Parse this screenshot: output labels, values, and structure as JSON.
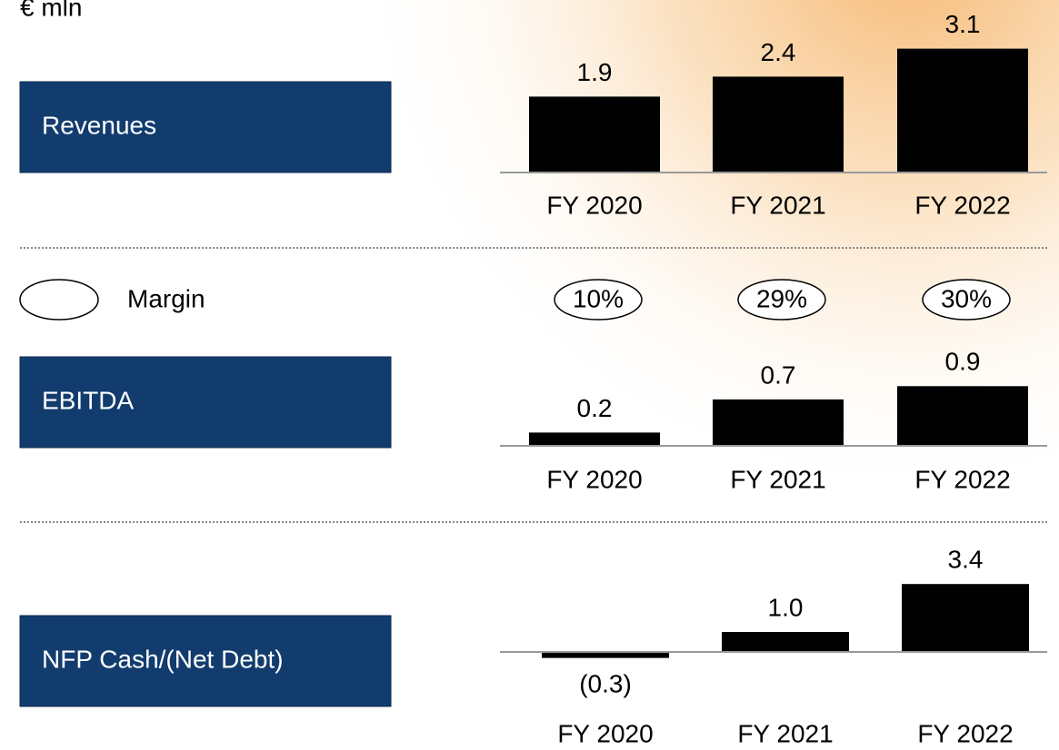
{
  "unit": "€ mln",
  "chart_data": [
    {
      "type": "bar",
      "title": "Revenues",
      "categories": [
        "FY 2020",
        "FY 2021",
        "FY 2022"
      ],
      "values": [
        1.9,
        2.4,
        3.1
      ],
      "color": "#000000"
    },
    {
      "type": "bar",
      "title": "EBITDA",
      "categories": [
        "FY 2020",
        "FY 2021",
        "FY 2022"
      ],
      "values": [
        0.2,
        0.7,
        0.9
      ],
      "color": "#000000",
      "margin": {
        "name": "Margin",
        "values": [
          10,
          29,
          30
        ],
        "value_labels": [
          "10%",
          "29%",
          "30%"
        ]
      }
    },
    {
      "type": "bar",
      "title": "NFP Cash/(Net Debt)",
      "categories": [
        "FY 2020",
        "FY 2021",
        "FY 2022"
      ],
      "values": [
        -0.3,
        1.0,
        3.4
      ],
      "value_labels": [
        "(0.3)",
        "1.0",
        "3.4"
      ],
      "color": "#000000"
    }
  ]
}
